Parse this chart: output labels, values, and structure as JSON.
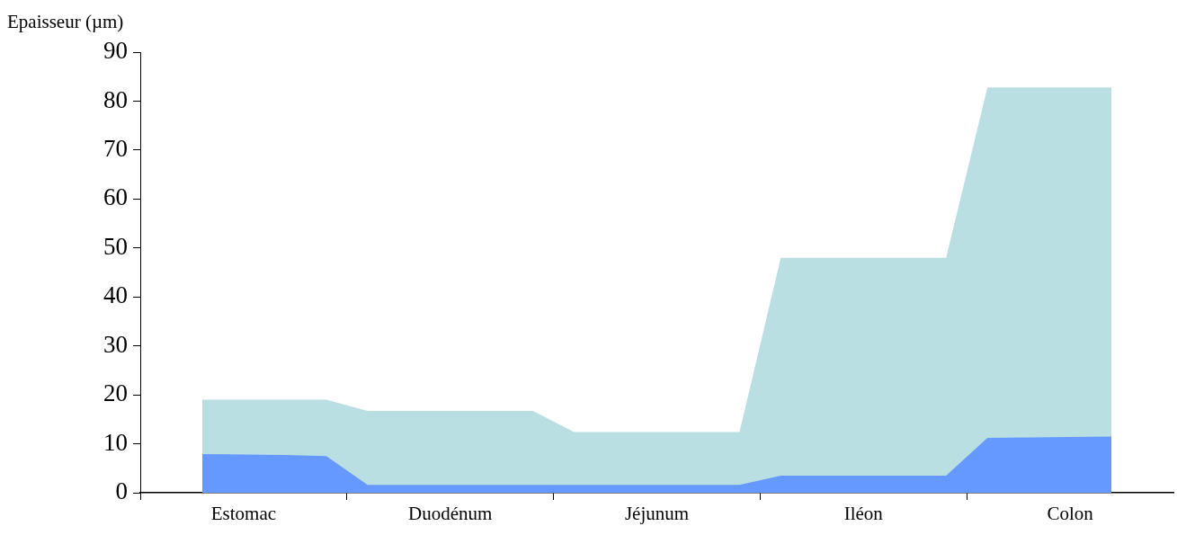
{
  "chart_data": {
    "type": "area",
    "ylabel": "Epaisseur (µm)",
    "categories": [
      null,
      null,
      "Estomac",
      null,
      null,
      null,
      null,
      "Duodénum",
      null,
      null,
      null,
      null,
      "Jéjunum",
      null,
      null,
      null,
      null,
      "Iléon",
      null,
      null,
      null,
      null,
      "Colon",
      null,
      null
    ],
    "ylim": [
      0,
      90
    ],
    "yticks": [
      0,
      10,
      20,
      30,
      40,
      50,
      60,
      70,
      80,
      90
    ],
    "series": [
      {
        "color": "#b9dfe2",
        "values": [
          null,
          19,
          19,
          19,
          19,
          16.7,
          16.7,
          16.7,
          16.7,
          16.7,
          12.4,
          12.4,
          12.4,
          12.4,
          12.4,
          48,
          48,
          48,
          48,
          48,
          82.8,
          82.8,
          82.8,
          82.8,
          null
        ]
      },
      {
        "color": "#6699ff",
        "values": [
          null,
          7.9,
          7.8,
          7.7,
          7.5,
          1.6,
          1.6,
          1.6,
          1.6,
          1.6,
          1.6,
          1.6,
          1.6,
          1.6,
          1.6,
          3.5,
          3.5,
          3.5,
          3.5,
          3.5,
          11.2,
          11.3,
          11.4,
          11.5,
          null
        ]
      }
    ]
  }
}
